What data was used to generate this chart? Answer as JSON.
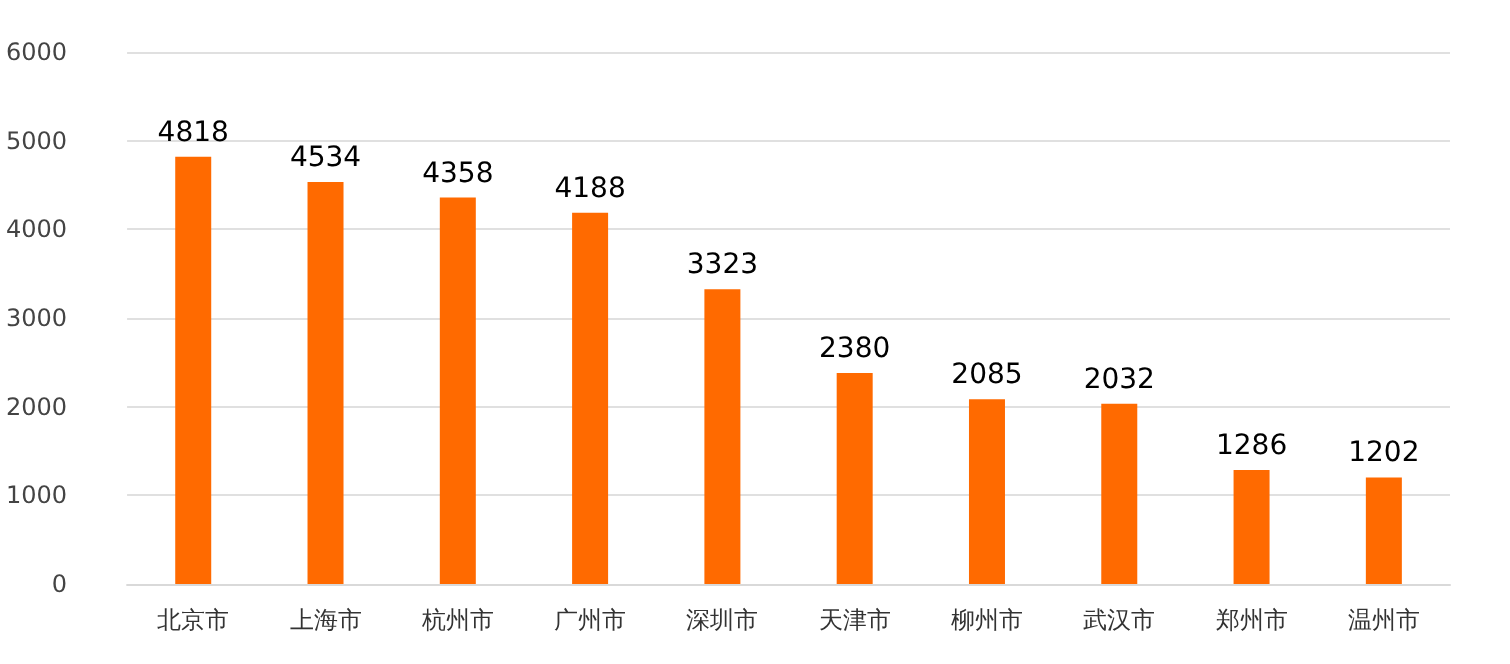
{
  "chart_data": {
    "type": "bar",
    "categories": [
      "北京市",
      "上海市",
      "杭州市",
      "广州市",
      "深圳市",
      "天津市",
      "柳州市",
      "武汉市",
      "郑州市",
      "温州市"
    ],
    "values": [
      4818,
      4534,
      4358,
      4188,
      3323,
      2380,
      2085,
      2032,
      1286,
      1202
    ],
    "color": "#ff6a00",
    "ylim": [
      0,
      6000
    ],
    "yticks": [
      0,
      1000,
      2000,
      3000,
      4000,
      5000,
      6000
    ],
    "grid": "y",
    "data_labels": true
  }
}
